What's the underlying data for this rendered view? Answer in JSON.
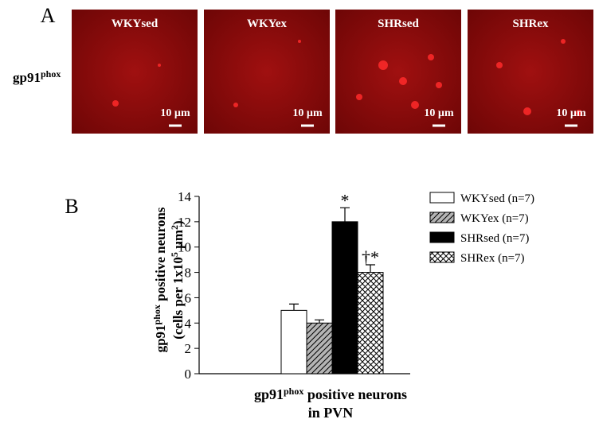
{
  "figure": {
    "panel_a": {
      "letter": "A",
      "row_label": [
        "gp91",
        "phox"
      ],
      "images": [
        {
          "title": "WKYsed",
          "scale": "10 µm"
        },
        {
          "title": "WKYex",
          "scale": "10 µm"
        },
        {
          "title": "SHRsed",
          "scale": "10 µm"
        },
        {
          "title": "SHRex",
          "scale": "10 µm"
        }
      ]
    },
    "panel_b_letter": "B"
  },
  "chart_data": {
    "type": "bar",
    "y_label": [
      [
        "gp91",
        "phox",
        " positive neurons"
      ],
      [
        "(cells per 1x10",
        "5",
        " µm",
        "2",
        ")"
      ]
    ],
    "x_label": [
      [
        "gp91",
        "phox",
        " positive neurons"
      ],
      [
        "in PVN"
      ]
    ],
    "categories": [
      null
    ],
    "series": [
      {
        "name": "WKYsed (n=7)",
        "color": "#ffffff",
        "fill": "solid",
        "values": [
          5
        ],
        "errors": [
          0.5
        ]
      },
      {
        "name": "WKYex (n=7)",
        "color": "#b4b4b4",
        "fill": "hatch",
        "values": [
          4
        ],
        "errors": [
          0.25
        ]
      },
      {
        "name": "SHRsed (n=7)",
        "color": "#000000",
        "fill": "solid",
        "values": [
          12
        ],
        "errors": [
          1.1
        ],
        "annotation": "*"
      },
      {
        "name": "SHRex (n=7)",
        "color": "#ffffff",
        "fill": "crosshatch",
        "values": [
          8
        ],
        "errors": [
          0.6
        ],
        "annotation": "†*"
      }
    ],
    "ylim": [
      0,
      14
    ],
    "yticks": [
      0,
      2,
      4,
      6,
      8,
      10,
      12,
      14
    ],
    "grid": false,
    "legend": "top-right"
  }
}
